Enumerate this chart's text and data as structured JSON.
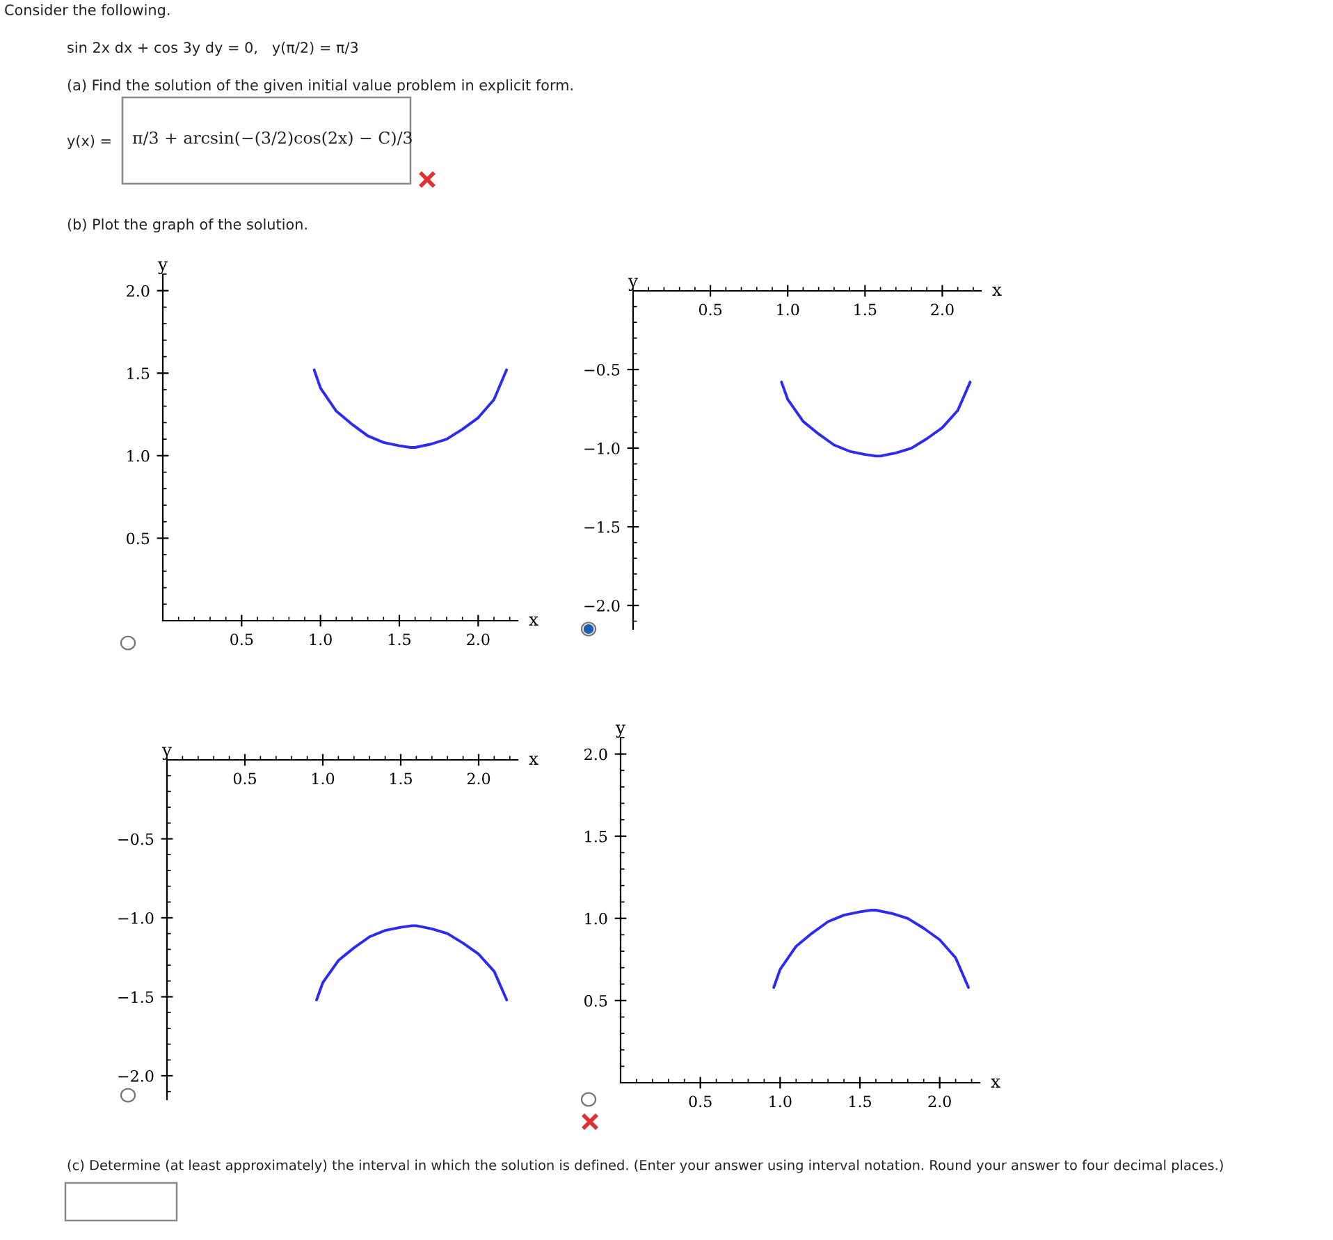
{
  "chart_data": [
    {
      "type": "line",
      "xlabel": "x",
      "ylabel": "y",
      "xlim": [
        0,
        2.25
      ],
      "ylim": [
        0,
        2.1
      ],
      "xticks": [
        {
          "value": 0.5,
          "label": "0.5"
        },
        {
          "value": 1.0,
          "label": "1.0"
        },
        {
          "value": 1.5,
          "label": "1.5"
        },
        {
          "value": 2.0,
          "label": "2.0"
        }
      ],
      "yticks": [
        {
          "value": 0.5,
          "label": "0.5"
        },
        {
          "value": 1.0,
          "label": "1.0"
        },
        {
          "value": 1.5,
          "label": "1.5"
        },
        {
          "value": 2.0,
          "label": "2.0"
        }
      ],
      "x": [
        0.96,
        1.0,
        1.1,
        1.2,
        1.3,
        1.4,
        1.5,
        1.57,
        1.6,
        1.7,
        1.8,
        1.9,
        2.0,
        2.1,
        2.18
      ],
      "series": [
        {
          "color": "#2b2bf5",
          "values": [
            1.52,
            1.41,
            1.27,
            1.19,
            1.12,
            1.08,
            1.06,
            1.05,
            1.05,
            1.07,
            1.1,
            1.16,
            1.23,
            1.34,
            1.52
          ]
        }
      ],
      "annotations": [
        "Consider the following.",
        "sin 2x dx + cos 3y dy = 0,   y(π/2) = π/3",
        "(a) Find the solution of the given initial value problem in explicit form.",
        "y(x) =",
        "π/3 + arcsin(−(3/2)cos(2x) − C)/3",
        "(b) Plot the graph of the solution.",
        "(c) Determine (at least approximately) the interval in which the solution is defined. (Enter your answer using interval notation. Round your answer to four decimal places.)"
      ]
    },
    {
      "type": "line",
      "xlabel": "x",
      "ylabel": "y",
      "xlim": [
        0,
        2.25
      ],
      "ylim": [
        -2.15,
        0
      ],
      "xticks": [
        {
          "value": 0.5,
          "label": "0.5"
        },
        {
          "value": 1.0,
          "label": "1.0"
        },
        {
          "value": 1.5,
          "label": "1.5"
        },
        {
          "value": 2.0,
          "label": "2.0"
        }
      ],
      "yticks": [
        {
          "value": -0.5,
          "label": "−0.5"
        },
        {
          "value": -1.0,
          "label": "−1.0"
        },
        {
          "value": -1.5,
          "label": "−1.5"
        },
        {
          "value": -2.0,
          "label": "−2.0"
        }
      ],
      "x": [
        0.96,
        1.0,
        1.1,
        1.2,
        1.3,
        1.4,
        1.5,
        1.57,
        1.6,
        1.7,
        1.8,
        1.9,
        2.0,
        2.1,
        2.18
      ],
      "series": [
        {
          "color": "#2b2bf5",
          "values": [
            -0.58,
            -0.69,
            -0.83,
            -0.91,
            -0.98,
            -1.02,
            -1.04,
            -1.05,
            -1.05,
            -1.03,
            -1.0,
            -0.94,
            -0.87,
            -0.76,
            -0.58
          ]
        }
      ]
    },
    {
      "type": "line",
      "xlabel": "x",
      "ylabel": "y",
      "xlim": [
        0,
        2.25
      ],
      "ylim": [
        -2.15,
        0
      ],
      "xticks": [
        {
          "value": 0.5,
          "label": "0.5"
        },
        {
          "value": 1.0,
          "label": "1.0"
        },
        {
          "value": 1.5,
          "label": "1.5"
        },
        {
          "value": 2.0,
          "label": "2.0"
        }
      ],
      "yticks": [
        {
          "value": -0.5,
          "label": "−0.5"
        },
        {
          "value": -1.0,
          "label": "−1.0"
        },
        {
          "value": -1.5,
          "label": "−1.5"
        },
        {
          "value": -2.0,
          "label": "−2.0"
        }
      ],
      "x": [
        0.96,
        1.0,
        1.1,
        1.2,
        1.3,
        1.4,
        1.5,
        1.57,
        1.6,
        1.7,
        1.8,
        1.9,
        2.0,
        2.1,
        2.18
      ],
      "series": [
        {
          "color": "#2b2bf5",
          "values": [
            -1.52,
            -1.41,
            -1.27,
            -1.19,
            -1.12,
            -1.08,
            -1.06,
            -1.05,
            -1.05,
            -1.07,
            -1.1,
            -1.16,
            -1.23,
            -1.34,
            -1.52
          ]
        }
      ]
    },
    {
      "type": "line",
      "xlabel": "x",
      "ylabel": "y",
      "xlim": [
        0,
        2.25
      ],
      "ylim": [
        0,
        2.1
      ],
      "xticks": [
        {
          "value": 0.5,
          "label": "0.5"
        },
        {
          "value": 1.0,
          "label": "1.0"
        },
        {
          "value": 1.5,
          "label": "1.5"
        },
        {
          "value": 2.0,
          "label": "2.0"
        }
      ],
      "yticks": [
        {
          "value": 0.5,
          "label": "0.5"
        },
        {
          "value": 1.0,
          "label": "1.0"
        },
        {
          "value": 1.5,
          "label": "1.5"
        },
        {
          "value": 2.0,
          "label": "2.0"
        }
      ],
      "x": [
        0.96,
        1.0,
        1.1,
        1.2,
        1.3,
        1.4,
        1.5,
        1.57,
        1.6,
        1.7,
        1.8,
        1.9,
        2.0,
        2.1,
        2.18
      ],
      "series": [
        {
          "color": "#2b2bf5",
          "values": [
            0.58,
            0.69,
            0.83,
            0.91,
            0.98,
            1.02,
            1.04,
            1.05,
            1.05,
            1.03,
            1.0,
            0.94,
            0.87,
            0.76,
            0.58
          ]
        }
      ]
    }
  ]
}
